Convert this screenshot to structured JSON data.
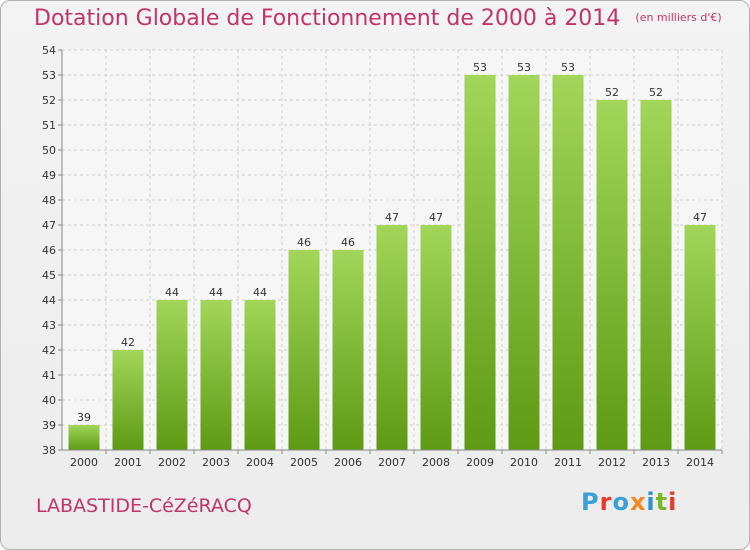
{
  "header": {
    "title": "Dotation Globale de Fonctionnement de 2000 à 2014",
    "unit": "(en milliers d'€)"
  },
  "commune": "LABASTIDE-CéZéRACQ",
  "logo": {
    "text": "Proxiti",
    "letter_colors": [
      "#3aa0d8",
      "#e8392b",
      "#3aa0d8",
      "#f08a1c",
      "#2f8fd0",
      "#7ab828",
      "#e8392b"
    ]
  },
  "colors": {
    "bar_top": "#a2d65a",
    "bar_bottom": "#5e9a14",
    "grid": "#cfcfcf",
    "accent": "#c0346a"
  },
  "chart_data": {
    "type": "bar",
    "title": "Dotation Globale de Fonctionnement de 2000 à 2014",
    "categories": [
      "2000",
      "2001",
      "2002",
      "2003",
      "2004",
      "2005",
      "2006",
      "2007",
      "2008",
      "2009",
      "2010",
      "2011",
      "2012",
      "2013",
      "2014"
    ],
    "values": [
      39,
      42,
      44,
      44,
      44,
      46,
      46,
      47,
      47,
      53,
      53,
      53,
      52,
      52,
      47
    ],
    "ylim": [
      38,
      54
    ],
    "yticks": [
      38,
      39,
      40,
      41,
      42,
      43,
      44,
      45,
      46,
      47,
      48,
      49,
      50,
      51,
      52,
      53,
      54
    ],
    "grid": true,
    "data_labels": true
  }
}
